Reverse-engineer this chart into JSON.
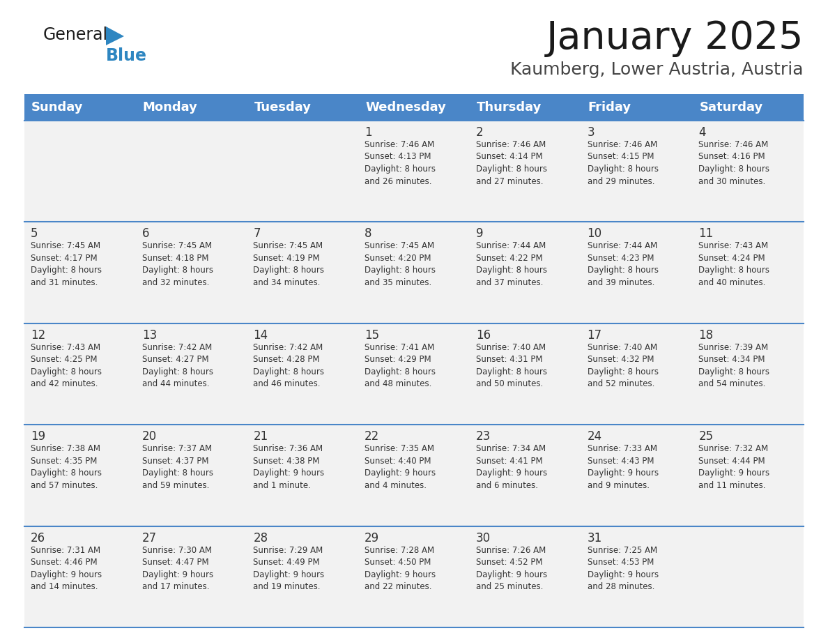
{
  "title": "January 2025",
  "subtitle": "Kaumberg, Lower Austria, Austria",
  "header_bg": "#4a86c8",
  "header_text": "#ffffff",
  "cell_bg": "#f2f2f2",
  "text_color": "#333333",
  "border_color": "#4a86c8",
  "days_of_week": [
    "Sunday",
    "Monday",
    "Tuesday",
    "Wednesday",
    "Thursday",
    "Friday",
    "Saturday"
  ],
  "weeks": [
    [
      {
        "day": "",
        "info": ""
      },
      {
        "day": "",
        "info": ""
      },
      {
        "day": "",
        "info": ""
      },
      {
        "day": "1",
        "info": "Sunrise: 7:46 AM\nSunset: 4:13 PM\nDaylight: 8 hours\nand 26 minutes."
      },
      {
        "day": "2",
        "info": "Sunrise: 7:46 AM\nSunset: 4:14 PM\nDaylight: 8 hours\nand 27 minutes."
      },
      {
        "day": "3",
        "info": "Sunrise: 7:46 AM\nSunset: 4:15 PM\nDaylight: 8 hours\nand 29 minutes."
      },
      {
        "day": "4",
        "info": "Sunrise: 7:46 AM\nSunset: 4:16 PM\nDaylight: 8 hours\nand 30 minutes."
      }
    ],
    [
      {
        "day": "5",
        "info": "Sunrise: 7:45 AM\nSunset: 4:17 PM\nDaylight: 8 hours\nand 31 minutes."
      },
      {
        "day": "6",
        "info": "Sunrise: 7:45 AM\nSunset: 4:18 PM\nDaylight: 8 hours\nand 32 minutes."
      },
      {
        "day": "7",
        "info": "Sunrise: 7:45 AM\nSunset: 4:19 PM\nDaylight: 8 hours\nand 34 minutes."
      },
      {
        "day": "8",
        "info": "Sunrise: 7:45 AM\nSunset: 4:20 PM\nDaylight: 8 hours\nand 35 minutes."
      },
      {
        "day": "9",
        "info": "Sunrise: 7:44 AM\nSunset: 4:22 PM\nDaylight: 8 hours\nand 37 minutes."
      },
      {
        "day": "10",
        "info": "Sunrise: 7:44 AM\nSunset: 4:23 PM\nDaylight: 8 hours\nand 39 minutes."
      },
      {
        "day": "11",
        "info": "Sunrise: 7:43 AM\nSunset: 4:24 PM\nDaylight: 8 hours\nand 40 minutes."
      }
    ],
    [
      {
        "day": "12",
        "info": "Sunrise: 7:43 AM\nSunset: 4:25 PM\nDaylight: 8 hours\nand 42 minutes."
      },
      {
        "day": "13",
        "info": "Sunrise: 7:42 AM\nSunset: 4:27 PM\nDaylight: 8 hours\nand 44 minutes."
      },
      {
        "day": "14",
        "info": "Sunrise: 7:42 AM\nSunset: 4:28 PM\nDaylight: 8 hours\nand 46 minutes."
      },
      {
        "day": "15",
        "info": "Sunrise: 7:41 AM\nSunset: 4:29 PM\nDaylight: 8 hours\nand 48 minutes."
      },
      {
        "day": "16",
        "info": "Sunrise: 7:40 AM\nSunset: 4:31 PM\nDaylight: 8 hours\nand 50 minutes."
      },
      {
        "day": "17",
        "info": "Sunrise: 7:40 AM\nSunset: 4:32 PM\nDaylight: 8 hours\nand 52 minutes."
      },
      {
        "day": "18",
        "info": "Sunrise: 7:39 AM\nSunset: 4:34 PM\nDaylight: 8 hours\nand 54 minutes."
      }
    ],
    [
      {
        "day": "19",
        "info": "Sunrise: 7:38 AM\nSunset: 4:35 PM\nDaylight: 8 hours\nand 57 minutes."
      },
      {
        "day": "20",
        "info": "Sunrise: 7:37 AM\nSunset: 4:37 PM\nDaylight: 8 hours\nand 59 minutes."
      },
      {
        "day": "21",
        "info": "Sunrise: 7:36 AM\nSunset: 4:38 PM\nDaylight: 9 hours\nand 1 minute."
      },
      {
        "day": "22",
        "info": "Sunrise: 7:35 AM\nSunset: 4:40 PM\nDaylight: 9 hours\nand 4 minutes."
      },
      {
        "day": "23",
        "info": "Sunrise: 7:34 AM\nSunset: 4:41 PM\nDaylight: 9 hours\nand 6 minutes."
      },
      {
        "day": "24",
        "info": "Sunrise: 7:33 AM\nSunset: 4:43 PM\nDaylight: 9 hours\nand 9 minutes."
      },
      {
        "day": "25",
        "info": "Sunrise: 7:32 AM\nSunset: 4:44 PM\nDaylight: 9 hours\nand 11 minutes."
      }
    ],
    [
      {
        "day": "26",
        "info": "Sunrise: 7:31 AM\nSunset: 4:46 PM\nDaylight: 9 hours\nand 14 minutes."
      },
      {
        "day": "27",
        "info": "Sunrise: 7:30 AM\nSunset: 4:47 PM\nDaylight: 9 hours\nand 17 minutes."
      },
      {
        "day": "28",
        "info": "Sunrise: 7:29 AM\nSunset: 4:49 PM\nDaylight: 9 hours\nand 19 minutes."
      },
      {
        "day": "29",
        "info": "Sunrise: 7:28 AM\nSunset: 4:50 PM\nDaylight: 9 hours\nand 22 minutes."
      },
      {
        "day": "30",
        "info": "Sunrise: 7:26 AM\nSunset: 4:52 PM\nDaylight: 9 hours\nand 25 minutes."
      },
      {
        "day": "31",
        "info": "Sunrise: 7:25 AM\nSunset: 4:53 PM\nDaylight: 9 hours\nand 28 minutes."
      },
      {
        "day": "",
        "info": ""
      }
    ]
  ],
  "logo_color_general": "#1a1a1a",
  "logo_color_blue": "#2e86c1",
  "logo_triangle_color": "#2e86c1",
  "fig_width": 11.88,
  "fig_height": 9.18,
  "title_fontsize": 40,
  "subtitle_fontsize": 18,
  "header_fontsize": 13,
  "day_num_fontsize": 12,
  "info_fontsize": 8.5
}
